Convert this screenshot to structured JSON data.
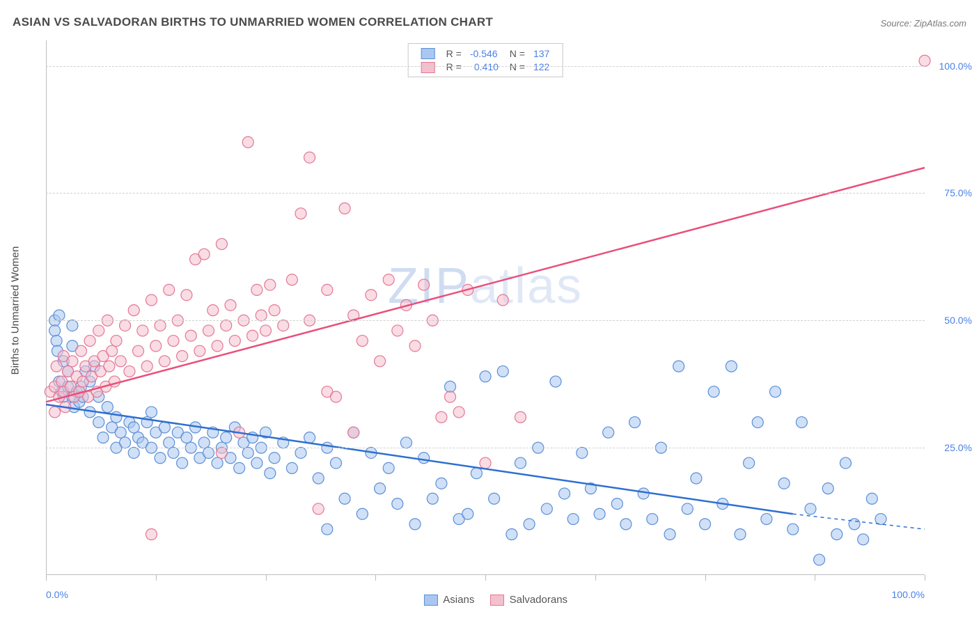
{
  "title": "ASIAN VS SALVADORAN BIRTHS TO UNMARRIED WOMEN CORRELATION CHART",
  "source": "Source: ZipAtlas.com",
  "ylabel": "Births to Unmarried Women",
  "watermark": "ZIPatlas",
  "chart": {
    "type": "scatter-with-regression",
    "xlim": [
      0,
      100
    ],
    "ylim": [
      0,
      105
    ],
    "y_ticks": [
      0,
      25,
      50,
      75,
      100
    ],
    "y_tick_labels": [
      "",
      "25.0%",
      "50.0%",
      "75.0%",
      "100.0%"
    ],
    "x_tick_positions": [
      0,
      12.5,
      25,
      37.5,
      50,
      62.5,
      75,
      87.5,
      100
    ],
    "x_min_label": "0.0%",
    "x_max_label": "100.0%",
    "background_color": "#ffffff",
    "grid_color": "#d0d0d0",
    "axis_color": "#bdbdbd",
    "marker_radius": 8,
    "marker_opacity": 0.55,
    "series": [
      {
        "name": "Asians",
        "fill": "#a9c7f0",
        "stroke": "#5b8fd6",
        "line_color": "#2e6fd1",
        "R": "-0.546",
        "N": "137",
        "regression": {
          "x1": 0,
          "y1": 33.5,
          "x2": 85,
          "y2": 12,
          "dashed_to_x": 100,
          "dashed_to_y": 9
        },
        "points": [
          [
            1,
            50
          ],
          [
            1,
            48
          ],
          [
            1.2,
            46
          ],
          [
            1.3,
            44
          ],
          [
            1.5,
            51
          ],
          [
            1.5,
            38
          ],
          [
            1.8,
            36
          ],
          [
            2,
            42
          ],
          [
            2,
            35
          ],
          [
            2.5,
            37
          ],
          [
            2.5,
            40
          ],
          [
            3,
            35
          ],
          [
            3,
            45
          ],
          [
            3,
            49
          ],
          [
            3.2,
            33
          ],
          [
            3.5,
            36
          ],
          [
            3.8,
            34
          ],
          [
            4,
            37
          ],
          [
            4.2,
            35
          ],
          [
            4.5,
            40
          ],
          [
            5,
            38
          ],
          [
            5,
            32
          ],
          [
            5.5,
            41
          ],
          [
            6,
            30
          ],
          [
            6,
            35
          ],
          [
            6.5,
            27
          ],
          [
            7,
            33
          ],
          [
            7.5,
            29
          ],
          [
            8,
            31
          ],
          [
            8,
            25
          ],
          [
            8.5,
            28
          ],
          [
            9,
            26
          ],
          [
            9.5,
            30
          ],
          [
            10,
            24
          ],
          [
            10,
            29
          ],
          [
            10.5,
            27
          ],
          [
            11,
            26
          ],
          [
            11.5,
            30
          ],
          [
            12,
            25
          ],
          [
            12,
            32
          ],
          [
            12.5,
            28
          ],
          [
            13,
            23
          ],
          [
            13.5,
            29
          ],
          [
            14,
            26
          ],
          [
            14.5,
            24
          ],
          [
            15,
            28
          ],
          [
            15.5,
            22
          ],
          [
            16,
            27
          ],
          [
            16.5,
            25
          ],
          [
            17,
            29
          ],
          [
            17.5,
            23
          ],
          [
            18,
            26
          ],
          [
            18.5,
            24
          ],
          [
            19,
            28
          ],
          [
            19.5,
            22
          ],
          [
            20,
            25
          ],
          [
            20.5,
            27
          ],
          [
            21,
            23
          ],
          [
            21.5,
            29
          ],
          [
            22,
            21
          ],
          [
            22.5,
            26
          ],
          [
            23,
            24
          ],
          [
            23.5,
            27
          ],
          [
            24,
            22
          ],
          [
            24.5,
            25
          ],
          [
            25,
            28
          ],
          [
            25.5,
            20
          ],
          [
            26,
            23
          ],
          [
            27,
            26
          ],
          [
            28,
            21
          ],
          [
            29,
            24
          ],
          [
            30,
            27
          ],
          [
            31,
            19
          ],
          [
            32,
            9
          ],
          [
            32,
            25
          ],
          [
            33,
            22
          ],
          [
            34,
            15
          ],
          [
            35,
            28
          ],
          [
            36,
            12
          ],
          [
            37,
            24
          ],
          [
            38,
            17
          ],
          [
            39,
            21
          ],
          [
            40,
            14
          ],
          [
            41,
            26
          ],
          [
            42,
            10
          ],
          [
            43,
            23
          ],
          [
            44,
            15
          ],
          [
            45,
            18
          ],
          [
            46,
            37
          ],
          [
            47,
            11
          ],
          [
            48,
            12
          ],
          [
            49,
            20
          ],
          [
            50,
            39
          ],
          [
            51,
            15
          ],
          [
            52,
            40
          ],
          [
            53,
            8
          ],
          [
            54,
            22
          ],
          [
            55,
            10
          ],
          [
            56,
            25
          ],
          [
            57,
            13
          ],
          [
            58,
            38
          ],
          [
            59,
            16
          ],
          [
            60,
            11
          ],
          [
            61,
            24
          ],
          [
            62,
            17
          ],
          [
            63,
            12
          ],
          [
            64,
            28
          ],
          [
            65,
            14
          ],
          [
            66,
            10
          ],
          [
            67,
            30
          ],
          [
            68,
            16
          ],
          [
            69,
            11
          ],
          [
            70,
            25
          ],
          [
            71,
            8
          ],
          [
            72,
            41
          ],
          [
            73,
            13
          ],
          [
            74,
            19
          ],
          [
            75,
            10
          ],
          [
            76,
            36
          ],
          [
            77,
            14
          ],
          [
            78,
            41
          ],
          [
            79,
            8
          ],
          [
            80,
            22
          ],
          [
            81,
            30
          ],
          [
            82,
            11
          ],
          [
            83,
            36
          ],
          [
            84,
            18
          ],
          [
            85,
            9
          ],
          [
            86,
            30
          ],
          [
            87,
            13
          ],
          [
            88,
            3
          ],
          [
            89,
            17
          ],
          [
            90,
            8
          ],
          [
            91,
            22
          ],
          [
            92,
            10
          ],
          [
            93,
            7
          ],
          [
            94,
            15
          ],
          [
            95,
            11
          ]
        ]
      },
      {
        "name": "Salvadorans",
        "fill": "#f4c0cd",
        "stroke": "#e37795",
        "line_color": "#e8507a",
        "R": "0.410",
        "N": "122",
        "regression": {
          "x1": 0,
          "y1": 34,
          "x2": 100,
          "y2": 80
        },
        "points": [
          [
            0.5,
            36
          ],
          [
            1,
            37
          ],
          [
            1,
            32
          ],
          [
            1.2,
            41
          ],
          [
            1.5,
            35
          ],
          [
            1.8,
            38
          ],
          [
            2,
            36
          ],
          [
            2,
            43
          ],
          [
            2.2,
            33
          ],
          [
            2.5,
            40
          ],
          [
            2.8,
            37
          ],
          [
            3,
            42
          ],
          [
            3.2,
            35
          ],
          [
            3.5,
            39
          ],
          [
            3.8,
            36
          ],
          [
            4,
            44
          ],
          [
            4.2,
            38
          ],
          [
            4.5,
            41
          ],
          [
            4.8,
            35
          ],
          [
            5,
            46
          ],
          [
            5.2,
            39
          ],
          [
            5.5,
            42
          ],
          [
            5.8,
            36
          ],
          [
            6,
            48
          ],
          [
            6.2,
            40
          ],
          [
            6.5,
            43
          ],
          [
            6.8,
            37
          ],
          [
            7,
            50
          ],
          [
            7.2,
            41
          ],
          [
            7.5,
            44
          ],
          [
            7.8,
            38
          ],
          [
            8,
            46
          ],
          [
            8.5,
            42
          ],
          [
            9,
            49
          ],
          [
            9.5,
            40
          ],
          [
            10,
            52
          ],
          [
            10.5,
            44
          ],
          [
            11,
            48
          ],
          [
            11.5,
            41
          ],
          [
            12,
            8
          ],
          [
            12,
            54
          ],
          [
            12.5,
            45
          ],
          [
            13,
            49
          ],
          [
            13.5,
            42
          ],
          [
            14,
            56
          ],
          [
            14.5,
            46
          ],
          [
            15,
            50
          ],
          [
            15.5,
            43
          ],
          [
            16,
            55
          ],
          [
            16.5,
            47
          ],
          [
            17,
            62
          ],
          [
            17.5,
            44
          ],
          [
            18,
            63
          ],
          [
            18.5,
            48
          ],
          [
            19,
            52
          ],
          [
            19.5,
            45
          ],
          [
            20,
            24
          ],
          [
            20,
            65
          ],
          [
            20.5,
            49
          ],
          [
            21,
            53
          ],
          [
            21.5,
            46
          ],
          [
            22,
            28
          ],
          [
            22.5,
            50
          ],
          [
            23,
            85
          ],
          [
            23.5,
            47
          ],
          [
            24,
            56
          ],
          [
            24.5,
            51
          ],
          [
            25,
            48
          ],
          [
            25.5,
            57
          ],
          [
            26,
            52
          ],
          [
            27,
            49
          ],
          [
            28,
            58
          ],
          [
            29,
            71
          ],
          [
            30,
            82
          ],
          [
            30,
            50
          ],
          [
            31,
            13
          ],
          [
            32,
            56
          ],
          [
            32,
            36
          ],
          [
            33,
            35
          ],
          [
            34,
            72
          ],
          [
            35,
            51
          ],
          [
            35,
            28
          ],
          [
            36,
            46
          ],
          [
            37,
            55
          ],
          [
            38,
            42
          ],
          [
            39,
            58
          ],
          [
            40,
            48
          ],
          [
            41,
            53
          ],
          [
            42,
            45
          ],
          [
            43,
            57
          ],
          [
            44,
            50
          ],
          [
            45,
            31
          ],
          [
            46,
            35
          ],
          [
            47,
            32
          ],
          [
            48,
            56
          ],
          [
            50,
            22
          ],
          [
            52,
            54
          ],
          [
            54,
            31
          ],
          [
            100,
            101
          ]
        ]
      }
    ]
  },
  "legend_bottom": [
    {
      "label": "Asians",
      "fill": "#a9c7f0",
      "stroke": "#5b8fd6"
    },
    {
      "label": "Salvadorans",
      "fill": "#f4c0cd",
      "stroke": "#e37795"
    }
  ]
}
